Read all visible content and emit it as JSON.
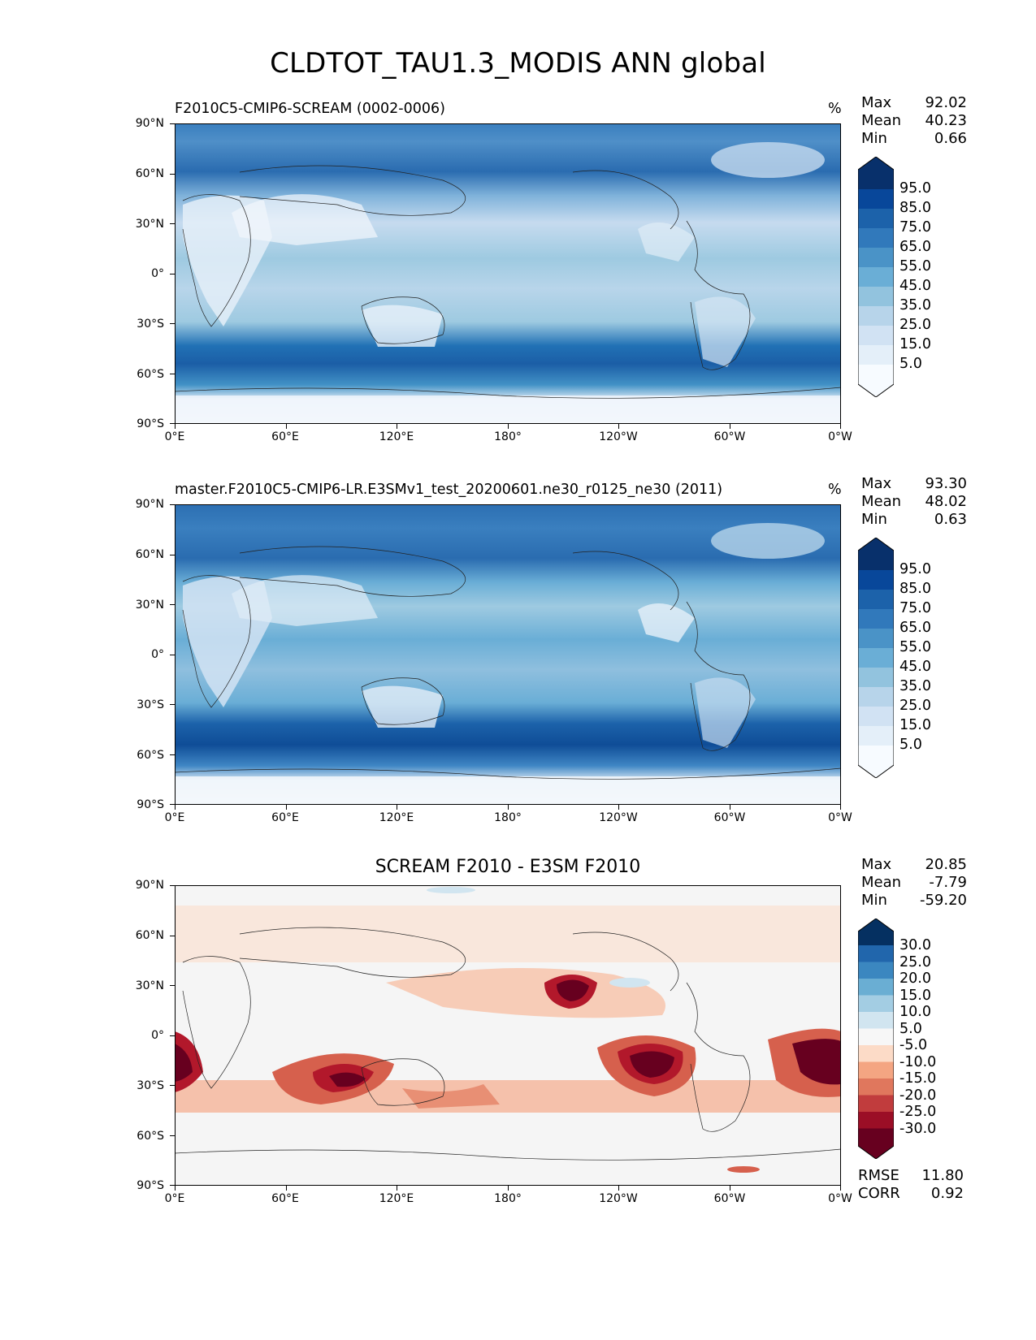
{
  "figure": {
    "title": "CLDTOT_TAU1.3_MODIS ANN global"
  },
  "axes": {
    "lat_ticks": [
      "90°N",
      "60°N",
      "30°N",
      "0°",
      "30°S",
      "60°S",
      "90°S"
    ],
    "lon_ticks": [
      "0°E",
      "60°E",
      "120°E",
      "180°",
      "120°W",
      "60°W",
      "0°W"
    ]
  },
  "panels": [
    {
      "title": "F2010C5-CMIP6-SCREAM (0002-0006)",
      "units": "%",
      "stats": [
        {
          "label": "Max",
          "value": "92.02"
        },
        {
          "label": "Mean",
          "value": "40.23"
        },
        {
          "label": "Min",
          "value": "0.66"
        }
      ],
      "colorbar_labels": [
        "95.0",
        "85.0",
        "75.0",
        "65.0",
        "55.0",
        "45.0",
        "35.0",
        "25.0",
        "15.0",
        "5.0"
      ]
    },
    {
      "title": "master.F2010C5-CMIP6-LR.E3SMv1_test_20200601.ne30_r0125_ne30 (2011)",
      "units": "%",
      "stats": [
        {
          "label": "Max",
          "value": "93.30"
        },
        {
          "label": "Mean",
          "value": "48.02"
        },
        {
          "label": "Min",
          "value": "0.63"
        }
      ],
      "colorbar_labels": [
        "95.0",
        "85.0",
        "75.0",
        "65.0",
        "55.0",
        "45.0",
        "35.0",
        "25.0",
        "15.0",
        "5.0"
      ]
    },
    {
      "title": "SCREAM F2010 - E3SM F2010",
      "units": "",
      "stats": [
        {
          "label": "Max",
          "value": "20.85"
        },
        {
          "label": "Mean",
          "value": "-7.79"
        },
        {
          "label": "Min",
          "value": "-59.20"
        }
      ],
      "colorbar_labels": [
        "30.0",
        "25.0",
        "20.0",
        "15.0",
        "10.0",
        "5.0",
        "-5.0",
        "-10.0",
        "-15.0",
        "-20.0",
        "-25.0",
        "-30.0"
      ],
      "metrics": [
        {
          "label": "RMSE",
          "value": "11.80"
        },
        {
          "label": "CORR",
          "value": "0.92"
        }
      ]
    }
  ],
  "chart_data": [
    {
      "type": "heatmap",
      "title": "F2010C5-CMIP6-SCREAM (0002-0006)",
      "units": "%",
      "x_ticks": [
        "0°E",
        "60°E",
        "120°E",
        "180°",
        "120°W",
        "60°W",
        "0°W"
      ],
      "y_ticks": [
        "90°N",
        "60°N",
        "30°N",
        "0°",
        "30°S",
        "60°S",
        "90°S"
      ],
      "colormap": "Blues",
      "levels": [
        0,
        5,
        15,
        25,
        35,
        45,
        55,
        65,
        75,
        85,
        95,
        100
      ],
      "stats": {
        "max": 92.02,
        "mean": 40.23,
        "min": 0.66
      }
    },
    {
      "type": "heatmap",
      "title": "master.F2010C5-CMIP6-LR.E3SMv1_test_20200601.ne30_r0125_ne30 (2011)",
      "units": "%",
      "x_ticks": [
        "0°E",
        "60°E",
        "120°E",
        "180°",
        "120°W",
        "60°W",
        "0°W"
      ],
      "y_ticks": [
        "90°N",
        "60°N",
        "30°N",
        "0°",
        "30°S",
        "60°S",
        "90°S"
      ],
      "colormap": "Blues",
      "levels": [
        0,
        5,
        15,
        25,
        35,
        45,
        55,
        65,
        75,
        85,
        95,
        100
      ],
      "stats": {
        "max": 93.3,
        "mean": 48.02,
        "min": 0.63
      }
    },
    {
      "type": "heatmap",
      "title": "SCREAM F2010 - E3SM F2010",
      "x_ticks": [
        "0°E",
        "60°E",
        "120°E",
        "180°",
        "120°W",
        "60°W",
        "0°W"
      ],
      "y_ticks": [
        "90°N",
        "60°N",
        "30°N",
        "0°",
        "30°S",
        "60°S",
        "90°S"
      ],
      "colormap": "RdBu",
      "levels": [
        -30,
        -25,
        -20,
        -15,
        -10,
        -5,
        5,
        10,
        15,
        20,
        25,
        30
      ],
      "stats": {
        "max": 20.85,
        "mean": -7.79,
        "min": -59.2,
        "rmse": 11.8,
        "corr": 0.92
      }
    }
  ]
}
